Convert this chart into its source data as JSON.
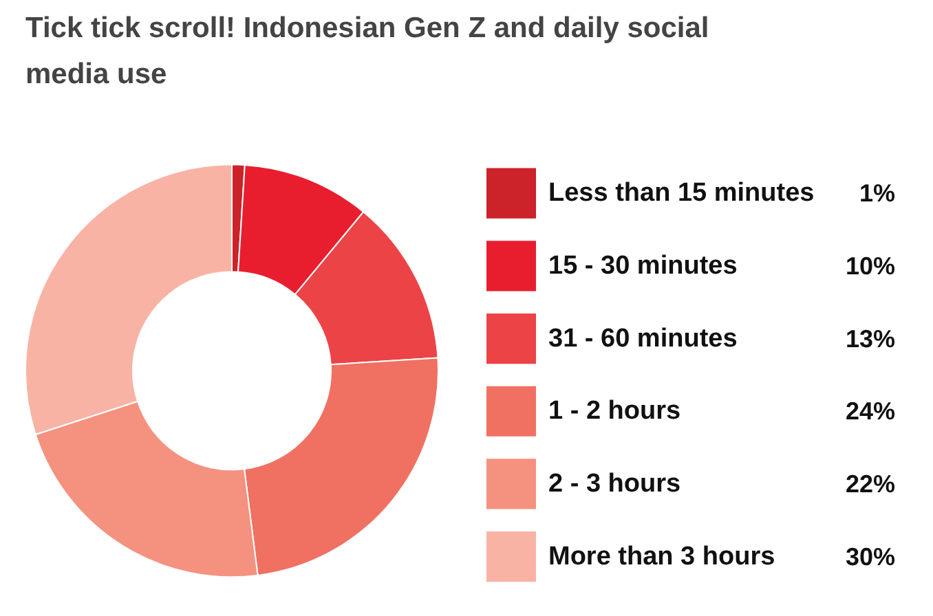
{
  "chart_data": {
    "type": "donut",
    "title": "Tick tick scroll! Indonesian Gen Z and daily social media use",
    "categories": [
      "Less than 15 minutes",
      "15 - 30 minutes",
      "31 - 60 minutes",
      "1 - 2 hours",
      "2 - 3 hours",
      "More than 3 hours"
    ],
    "values": [
      1,
      10,
      13,
      24,
      22,
      30
    ],
    "value_labels": [
      "1%",
      "10%",
      "13%",
      "24%",
      "22%",
      "30%"
    ],
    "colors": [
      "#cc2229",
      "#e81e2e",
      "#ec4347",
      "#f07162",
      "#f4927f",
      "#f8b3a5"
    ],
    "legend": "right"
  }
}
